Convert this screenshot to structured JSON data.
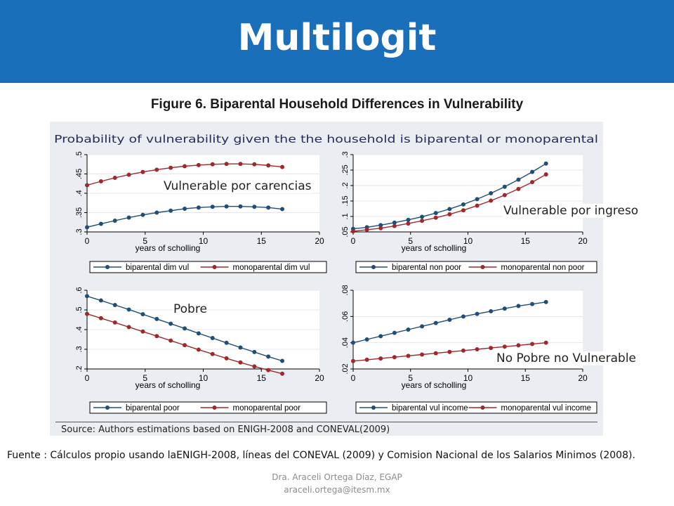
{
  "slide": {
    "title": "Multilogit",
    "caption": "Figure 6. Biparental Household Differences in Vulnerability",
    "graph_title": "Probability of vulnerability given the the household is biparental or monoparental",
    "source": "Source: Authors estimations based on ENIGH-2008 and CONEVAL(2009)",
    "footnote": "Fuente : Cálculos propio usando laENIGH-2008,  líneas del CONEVAL (2009) y Comision Nacional de los Salarios Minimos (2008).",
    "footer_name": "Dra. Araceli Ortega Díaz, EGAP",
    "footer_email": "araceli.ortega@itesm.mx",
    "colors": {
      "title_bar": "#1a6fba",
      "series_1": "#1f4e79",
      "series_2": "#a0282c",
      "graph_background": "#eaeef2"
    }
  },
  "chart_data": [
    {
      "type": "line",
      "label": "Vulnerable por carencias",
      "xlabel": "years of scholling",
      "xlim": [
        0,
        20
      ],
      "xticks": [
        0,
        5,
        10,
        15,
        20
      ],
      "ylim": [
        0.3,
        0.5
      ],
      "yticks": [
        0.3,
        0.35,
        0.4,
        0.45,
        0.5
      ],
      "ytick_labels": [
        ".3",
        ".35",
        ".4",
        ".45",
        ".5"
      ],
      "x": [
        0,
        1.2,
        2.4,
        3.6,
        4.8,
        6,
        7.2,
        8.4,
        9.6,
        10.8,
        12,
        13.2,
        14.4,
        15.6,
        16.8
      ],
      "series": [
        {
          "name": "biparental dim vul",
          "color": "#1f4e79",
          "values": [
            0.312,
            0.321,
            0.329,
            0.337,
            0.344,
            0.35,
            0.355,
            0.36,
            0.363,
            0.365,
            0.366,
            0.366,
            0.365,
            0.363,
            0.359
          ]
        },
        {
          "name": "monoparental dim vul",
          "color": "#a0282c",
          "values": [
            0.421,
            0.431,
            0.44,
            0.448,
            0.455,
            0.461,
            0.466,
            0.47,
            0.473,
            0.475,
            0.476,
            0.476,
            0.475,
            0.472,
            0.468
          ]
        }
      ]
    },
    {
      "type": "line",
      "label": "Vulnerable por ingreso",
      "xlabel": "years of scholling",
      "xlim": [
        0,
        20
      ],
      "xticks": [
        0,
        5,
        10,
        15,
        20
      ],
      "ylim": [
        0.05,
        0.3
      ],
      "yticks": [
        0.05,
        0.1,
        0.15,
        0.2,
        0.25,
        0.3
      ],
      "ytick_labels": [
        ".05",
        ".1",
        ".15",
        ".2",
        ".25",
        ".3"
      ],
      "x": [
        0,
        1.2,
        2.4,
        3.6,
        4.8,
        6,
        7.2,
        8.4,
        9.6,
        10.8,
        12,
        13.2,
        14.4,
        15.6,
        16.8
      ],
      "series": [
        {
          "name": "biparental non poor",
          "color": "#1f4e79",
          "values": [
            0.06,
            0.065,
            0.072,
            0.08,
            0.089,
            0.099,
            0.111,
            0.124,
            0.139,
            0.156,
            0.175,
            0.196,
            0.219,
            0.244,
            0.271
          ]
        },
        {
          "name": "monoparental non poor",
          "color": "#a0282c",
          "values": [
            0.052,
            0.057,
            0.062,
            0.069,
            0.077,
            0.086,
            0.096,
            0.107,
            0.12,
            0.135,
            0.151,
            0.169,
            0.189,
            0.211,
            0.236
          ]
        }
      ]
    },
    {
      "type": "line",
      "label": "Pobre",
      "xlabel": "years of scholling",
      "xlim": [
        0,
        20
      ],
      "xticks": [
        0,
        5,
        10,
        15,
        20
      ],
      "ylim": [
        0.2,
        0.6
      ],
      "yticks": [
        0.2,
        0.3,
        0.4,
        0.5,
        0.6
      ],
      "ytick_labels": [
        ".2",
        ".3",
        ".4",
        ".5",
        ".6"
      ],
      "x": [
        0,
        1.2,
        2.4,
        3.6,
        4.8,
        6,
        7.2,
        8.4,
        9.6,
        10.8,
        12,
        13.2,
        14.4,
        15.6,
        16.8
      ],
      "series": [
        {
          "name": "biparental poor",
          "color": "#1f4e79",
          "values": [
            0.57,
            0.548,
            0.525,
            0.502,
            0.478,
            0.454,
            0.43,
            0.406,
            0.381,
            0.357,
            0.333,
            0.309,
            0.286,
            0.263,
            0.241
          ]
        },
        {
          "name": "monoparental poor",
          "color": "#a0282c",
          "values": [
            0.48,
            0.458,
            0.436,
            0.413,
            0.39,
            0.367,
            0.344,
            0.321,
            0.298,
            0.276,
            0.254,
            0.233,
            0.213,
            0.194,
            0.176
          ]
        }
      ]
    },
    {
      "type": "line",
      "label": "No Pobre no Vulnerable",
      "xlabel": "years of scholling",
      "xlim": [
        0,
        20
      ],
      "xticks": [
        0,
        5,
        10,
        15,
        20
      ],
      "ylim": [
        0.02,
        0.08
      ],
      "yticks": [
        0.02,
        0.04,
        0.06,
        0.08
      ],
      "ytick_labels": [
        ".02",
        ".04",
        ".06",
        ".08"
      ],
      "x": [
        0,
        1.2,
        2.4,
        3.6,
        4.8,
        6,
        7.2,
        8.4,
        9.6,
        10.8,
        12,
        13.2,
        14.4,
        15.6,
        16.8
      ],
      "series": [
        {
          "name": "biparental vul income",
          "color": "#1f4e79",
          "values": [
            0.04,
            0.0425,
            0.045,
            0.0475,
            0.05,
            0.0525,
            0.055,
            0.0575,
            0.06,
            0.062,
            0.064,
            0.066,
            0.068,
            0.0695,
            0.071
          ]
        },
        {
          "name": "monoparental vul income",
          "color": "#a0282c",
          "values": [
            0.026,
            0.027,
            0.028,
            0.029,
            0.03,
            0.031,
            0.032,
            0.033,
            0.034,
            0.035,
            0.036,
            0.037,
            0.038,
            0.039,
            0.04
          ]
        }
      ]
    }
  ]
}
